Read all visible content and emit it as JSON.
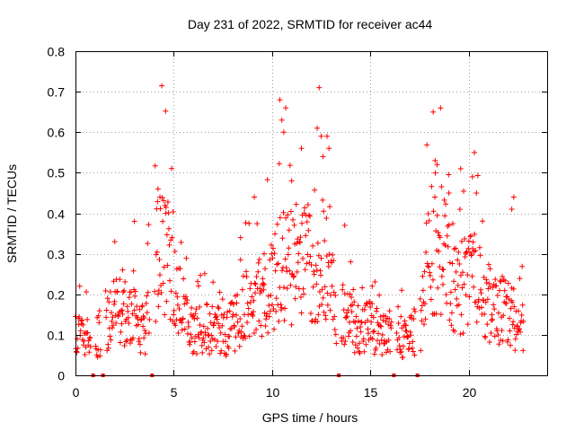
{
  "chart_data": {
    "type": "scatter",
    "title": "Day 231 of 2022, SRMTID for receiver ac44",
    "xlabel": "GPS time / hours",
    "ylabel": "SRMTID / TECUs",
    "xlim": [
      0,
      24
    ],
    "ylim": [
      0,
      0.8
    ],
    "x_ticks": [
      0,
      5,
      10,
      15,
      20
    ],
    "x_tick_labels": [
      "0",
      "5",
      "10",
      "15",
      "20"
    ],
    "y_ticks": [
      0,
      0.1,
      0.2,
      0.3,
      0.4,
      0.5,
      0.6,
      0.7,
      0.8
    ],
    "y_tick_labels": [
      "0",
      "0.1",
      "0.2",
      "0.3",
      "0.4",
      "0.5",
      "0.6",
      "0.7",
      "0.8"
    ],
    "grid": true,
    "marker": "+",
    "marker_color": "#ff0000",
    "series": [
      {
        "name": "SRMTID",
        "profile": [
          [
            0.0,
            0.1
          ],
          [
            0.5,
            0.09
          ],
          [
            1.0,
            0.09
          ],
          [
            1.5,
            0.12
          ],
          [
            2.0,
            0.16
          ],
          [
            2.5,
            0.16
          ],
          [
            3.0,
            0.14
          ],
          [
            3.5,
            0.1
          ],
          [
            4.0,
            0.25
          ],
          [
            4.5,
            0.33
          ],
          [
            5.0,
            0.26
          ],
          [
            5.5,
            0.14
          ],
          [
            6.0,
            0.11
          ],
          [
            6.5,
            0.11
          ],
          [
            7.0,
            0.12
          ],
          [
            7.5,
            0.1
          ],
          [
            8.0,
            0.12
          ],
          [
            8.5,
            0.16
          ],
          [
            9.0,
            0.18
          ],
          [
            9.5,
            0.2
          ],
          [
            10.0,
            0.22
          ],
          [
            10.5,
            0.26
          ],
          [
            11.0,
            0.27
          ],
          [
            11.5,
            0.3
          ],
          [
            12.0,
            0.26
          ],
          [
            12.5,
            0.24
          ],
          [
            13.0,
            0.2
          ],
          [
            13.5,
            0.15
          ],
          [
            14.0,
            0.13
          ],
          [
            14.5,
            0.11
          ],
          [
            15.0,
            0.12
          ],
          [
            15.5,
            0.1
          ],
          [
            16.0,
            0.09
          ],
          [
            16.5,
            0.09
          ],
          [
            17.0,
            0.1
          ],
          [
            17.5,
            0.11
          ],
          [
            18.0,
            0.3
          ],
          [
            18.5,
            0.32
          ],
          [
            19.0,
            0.26
          ],
          [
            19.5,
            0.22
          ],
          [
            20.0,
            0.24
          ],
          [
            20.5,
            0.22
          ],
          [
            21.0,
            0.18
          ],
          [
            21.5,
            0.16
          ],
          [
            22.0,
            0.15
          ],
          [
            22.5,
            0.13
          ],
          [
            22.8,
            0.12
          ]
        ],
        "points": [
          [
            3.0,
            0.38
          ],
          [
            4.2,
            0.46
          ],
          [
            4.3,
            0.44
          ],
          [
            4.6,
            0.4
          ],
          [
            9.1,
            0.44
          ],
          [
            10.4,
            0.68
          ],
          [
            10.5,
            0.63
          ],
          [
            10.6,
            0.6
          ],
          [
            10.7,
            0.66
          ],
          [
            11.0,
            0.48
          ],
          [
            11.5,
            0.56
          ],
          [
            12.3,
            0.61
          ],
          [
            12.4,
            0.71
          ],
          [
            12.5,
            0.59
          ],
          [
            12.6,
            0.54
          ],
          [
            12.8,
            0.59
          ],
          [
            12.9,
            0.56
          ],
          [
            13.7,
            0.37
          ],
          [
            18.2,
            0.65
          ],
          [
            18.3,
            0.53
          ],
          [
            18.4,
            0.52
          ],
          [
            19.0,
            0.45
          ],
          [
            19.6,
            0.51
          ],
          [
            20.3,
            0.55
          ],
          [
            20.2,
            0.49
          ],
          [
            22.3,
            0.44
          ],
          [
            22.2,
            0.41
          ],
          [
            2.0,
            0.33
          ],
          [
            2.4,
            0.26
          ],
          [
            7.0,
            0.23
          ],
          [
            8.4,
            0.34
          ],
          [
            9.6,
            0.3
          ],
          [
            14.0,
            0.28
          ],
          [
            16.6,
            0.21
          ],
          [
            15.1,
            0.22
          ]
        ],
        "gap_markers": [
          0.9,
          1.4,
          3.9,
          13.4,
          16.2,
          17.4
        ]
      }
    ]
  }
}
